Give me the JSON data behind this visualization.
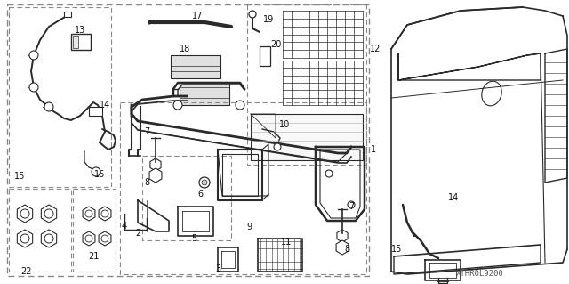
{
  "bg_color": "#ffffff",
  "fig_width": 6.4,
  "fig_height": 3.19,
  "dpi": 100,
  "watermark": "XTHR0L9200",
  "label_fontsize": 6.5,
  "label_color": "#111111"
}
